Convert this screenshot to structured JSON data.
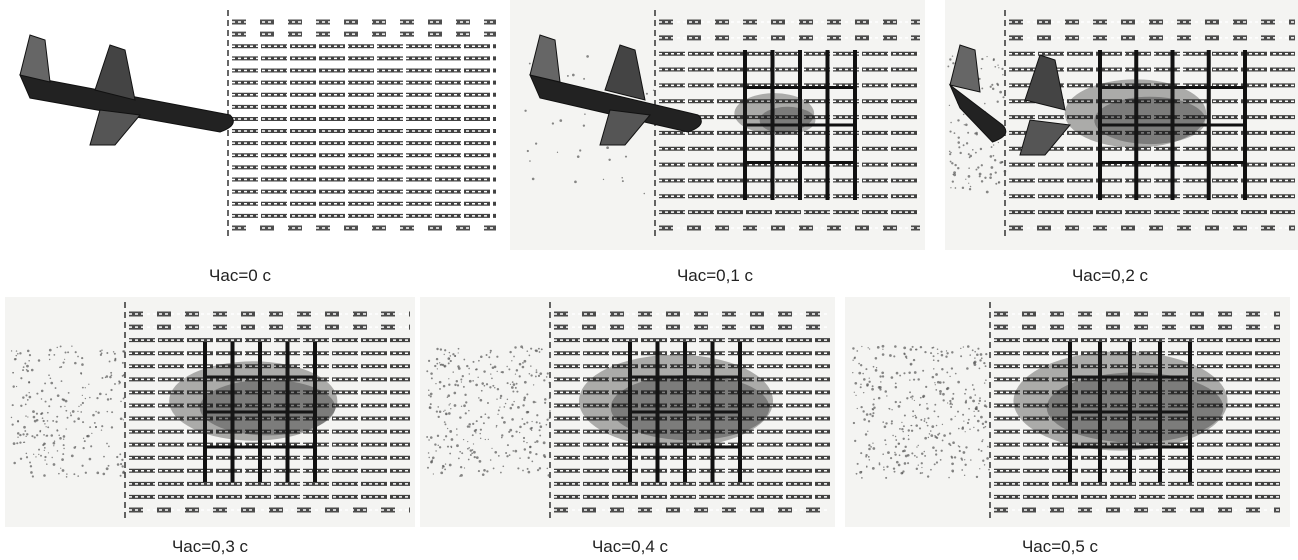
{
  "frames": [
    {
      "caption": "Час=0 с"
    },
    {
      "caption": "Час=0,1 с"
    },
    {
      "caption": "Час=0,2 с"
    },
    {
      "caption": "Час=0,3 с"
    },
    {
      "caption": "Час=0,4 с"
    },
    {
      "caption": "Час=0,5 с"
    }
  ]
}
